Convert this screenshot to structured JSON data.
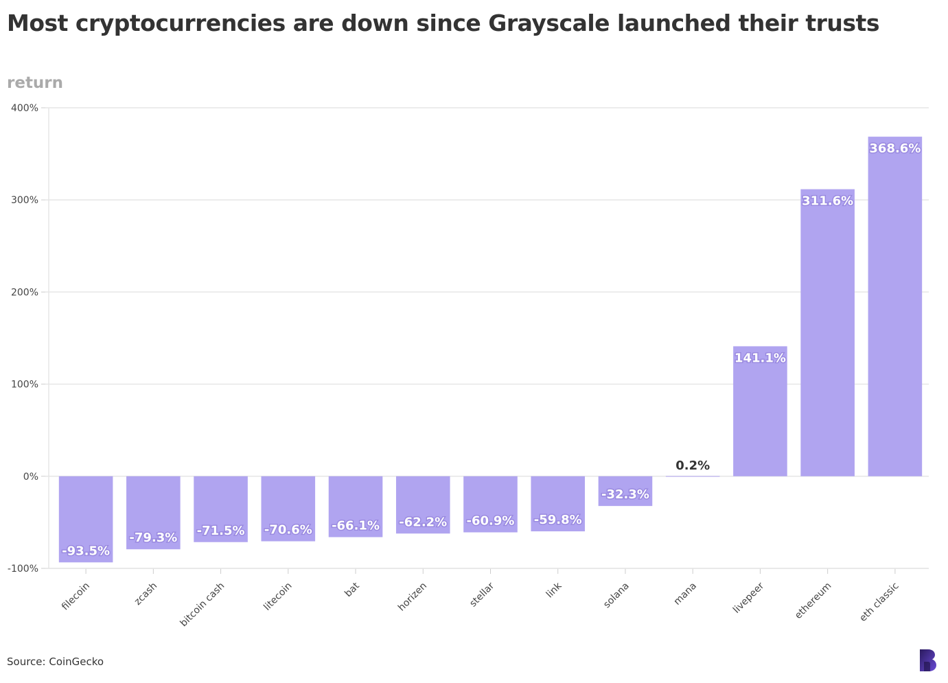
{
  "title": "Most cryptocurrencies are down since Grayscale launched their trusts",
  "source": "Source: CoinGecko",
  "logo_icon": "brand-b-logo",
  "colors": {
    "bar": "#b0a4f0",
    "grid": "#e6e6e6",
    "axis": "#cccccc",
    "label_dark": "#333333",
    "label_light": "#ffffff"
  },
  "chart_data": {
    "type": "bar",
    "ylabel": "return",
    "xlabel": "",
    "ylim": [
      -100,
      400
    ],
    "yticks": [
      400,
      300,
      200,
      100,
      0,
      -100
    ],
    "ytick_labels": [
      "400%",
      "300%",
      "200%",
      "100%",
      "0%",
      "-100%"
    ],
    "grid": true,
    "categories": [
      "filecoin",
      "zcash",
      "bitcoin cash",
      "litecoin",
      "bat",
      "horizen",
      "stellar",
      "link",
      "solana",
      "mana",
      "livepeer",
      "ethereum",
      "eth classic"
    ],
    "values": [
      -93.5,
      -79.3,
      -71.5,
      -70.6,
      -66.1,
      -62.2,
      -60.9,
      -59.8,
      -32.3,
      0.2,
      141.1,
      311.6,
      368.6
    ],
    "data_labels": [
      "-93.5%",
      "-79.3%",
      "-71.5%",
      "-70.6%",
      "-66.1%",
      "-62.2%",
      "-60.9%",
      "-59.8%",
      "-32.3%",
      "0.2%",
      "141.1%",
      "311.6%",
      "368.6%"
    ]
  }
}
